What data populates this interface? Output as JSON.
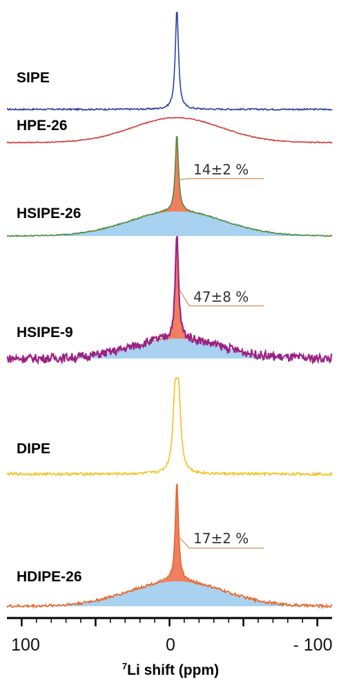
{
  "chart_data": {
    "type": "line",
    "title": "",
    "xlabel_sup": "7",
    "xlabel": "Li shift (ppm)",
    "xlim": [
      110,
      -110
    ],
    "x_ticks": [
      100,
      0,
      -100
    ],
    "x_tick_labels": [
      "100",
      "0",
      "- 100"
    ],
    "grid": false,
    "series": [
      {
        "name": "SIPE",
        "color": "#2b3f9c",
        "peak_center": -5,
        "narrow_width": 1.3,
        "narrow_height": 1.0,
        "broad_width": 0,
        "broad_height": 0,
        "noise": 0.008
      },
      {
        "name": "HPE-26",
        "color": "#d13b3b",
        "peak_center": -5,
        "narrow_width": 0,
        "narrow_height": 0,
        "broad_width": 30,
        "broad_height": 1.0,
        "noise": 0.02
      },
      {
        "name": "HSIPE-26",
        "color": "#4c8b3c",
        "peak_center": -5,
        "narrow_width": 1.3,
        "narrow_height": 0.76,
        "broad_width": 32,
        "broad_height": 0.24,
        "noise": 0.006,
        "narrow_fill": "#f07f5f",
        "broad_fill": "#a8d2ef",
        "narrow_fraction": "14±2 %"
      },
      {
        "name": "HSIPE-9",
        "color": "#9c2184",
        "peak_center": -5,
        "narrow_width": 1.3,
        "narrow_height": 0.84,
        "broad_width": 30,
        "broad_height": 0.16,
        "noise": 0.035,
        "narrow_fill": "#f07f5f",
        "broad_fill": "#a8d2ef",
        "narrow_fraction": "47±8 %"
      },
      {
        "name": "DIPE",
        "color": "#f2c01a",
        "peak_center": -5,
        "narrow_width": 1.8,
        "narrow_height": 1.0,
        "broad_width": 0,
        "broad_height": 0,
        "noise": 0.012,
        "doublet": true
      },
      {
        "name": "HDIPE-26",
        "color": "#e8642a",
        "peak_center": -5,
        "narrow_width": 1.3,
        "narrow_height": 0.8,
        "broad_width": 32,
        "broad_height": 0.2,
        "noise": 0.012,
        "narrow_fill": "#f07f5f",
        "broad_fill": "#a8d2ef",
        "narrow_fraction": "17±2 %"
      }
    ]
  }
}
